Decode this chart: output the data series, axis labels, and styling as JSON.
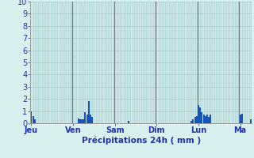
{
  "xlabel": "Précipitations 24h ( mm )",
  "ylim": [
    0,
    10
  ],
  "bar_color": "#1555bb",
  "background_color": "#d8f0ee",
  "plot_bg_color": "#cce8e8",
  "grid_color": "#aacccc",
  "day_sep_color": "#777788",
  "axis_label_color": "#2233aa",
  "tick_color": "#2233aa",
  "days": [
    "Jeu",
    "Ven",
    "Sam",
    "Dim",
    "Lun",
    "Ma"
  ],
  "day_positions": [
    0,
    24,
    48,
    72,
    96,
    120
  ],
  "num_bars": 127,
  "bar_values": [
    1.0,
    0.6,
    0.3,
    0.0,
    0.0,
    0.0,
    0.0,
    0.0,
    0.0,
    0.0,
    0.0,
    0.0,
    0.0,
    0.0,
    0.0,
    0.0,
    0.0,
    0.0,
    0.0,
    0.0,
    0.0,
    0.0,
    0.0,
    0.0,
    0.0,
    0.0,
    0.0,
    0.4,
    0.35,
    0.35,
    0.35,
    0.9,
    0.7,
    1.8,
    0.7,
    0.5,
    0.0,
    0.0,
    0.0,
    0.0,
    0.0,
    0.0,
    0.0,
    0.0,
    0.0,
    0.0,
    0.0,
    0.0,
    0.0,
    0.0,
    0.0,
    0.0,
    0.0,
    0.0,
    0.0,
    0.0,
    0.2,
    0.0,
    0.0,
    0.0,
    0.0,
    0.0,
    0.0,
    0.0,
    0.0,
    0.0,
    0.0,
    0.0,
    0.0,
    0.0,
    0.0,
    0.0,
    0.0,
    0.0,
    0.0,
    0.0,
    0.0,
    0.0,
    0.0,
    0.0,
    0.0,
    0.0,
    0.0,
    0.0,
    0.0,
    0.0,
    0.0,
    0.0,
    0.0,
    0.0,
    0.0,
    0.0,
    0.2,
    0.3,
    0.5,
    0.6,
    1.5,
    1.3,
    0.9,
    0.7,
    0.6,
    0.7,
    0.5,
    0.7,
    0.0,
    0.0,
    0.0,
    0.0,
    0.0,
    0.0,
    0.0,
    0.0,
    0.0,
    0.0,
    0.0,
    0.0,
    0.0,
    0.0,
    0.0,
    0.0,
    0.7,
    0.8,
    0.0,
    0.0,
    0.0,
    0.0,
    0.3
  ]
}
